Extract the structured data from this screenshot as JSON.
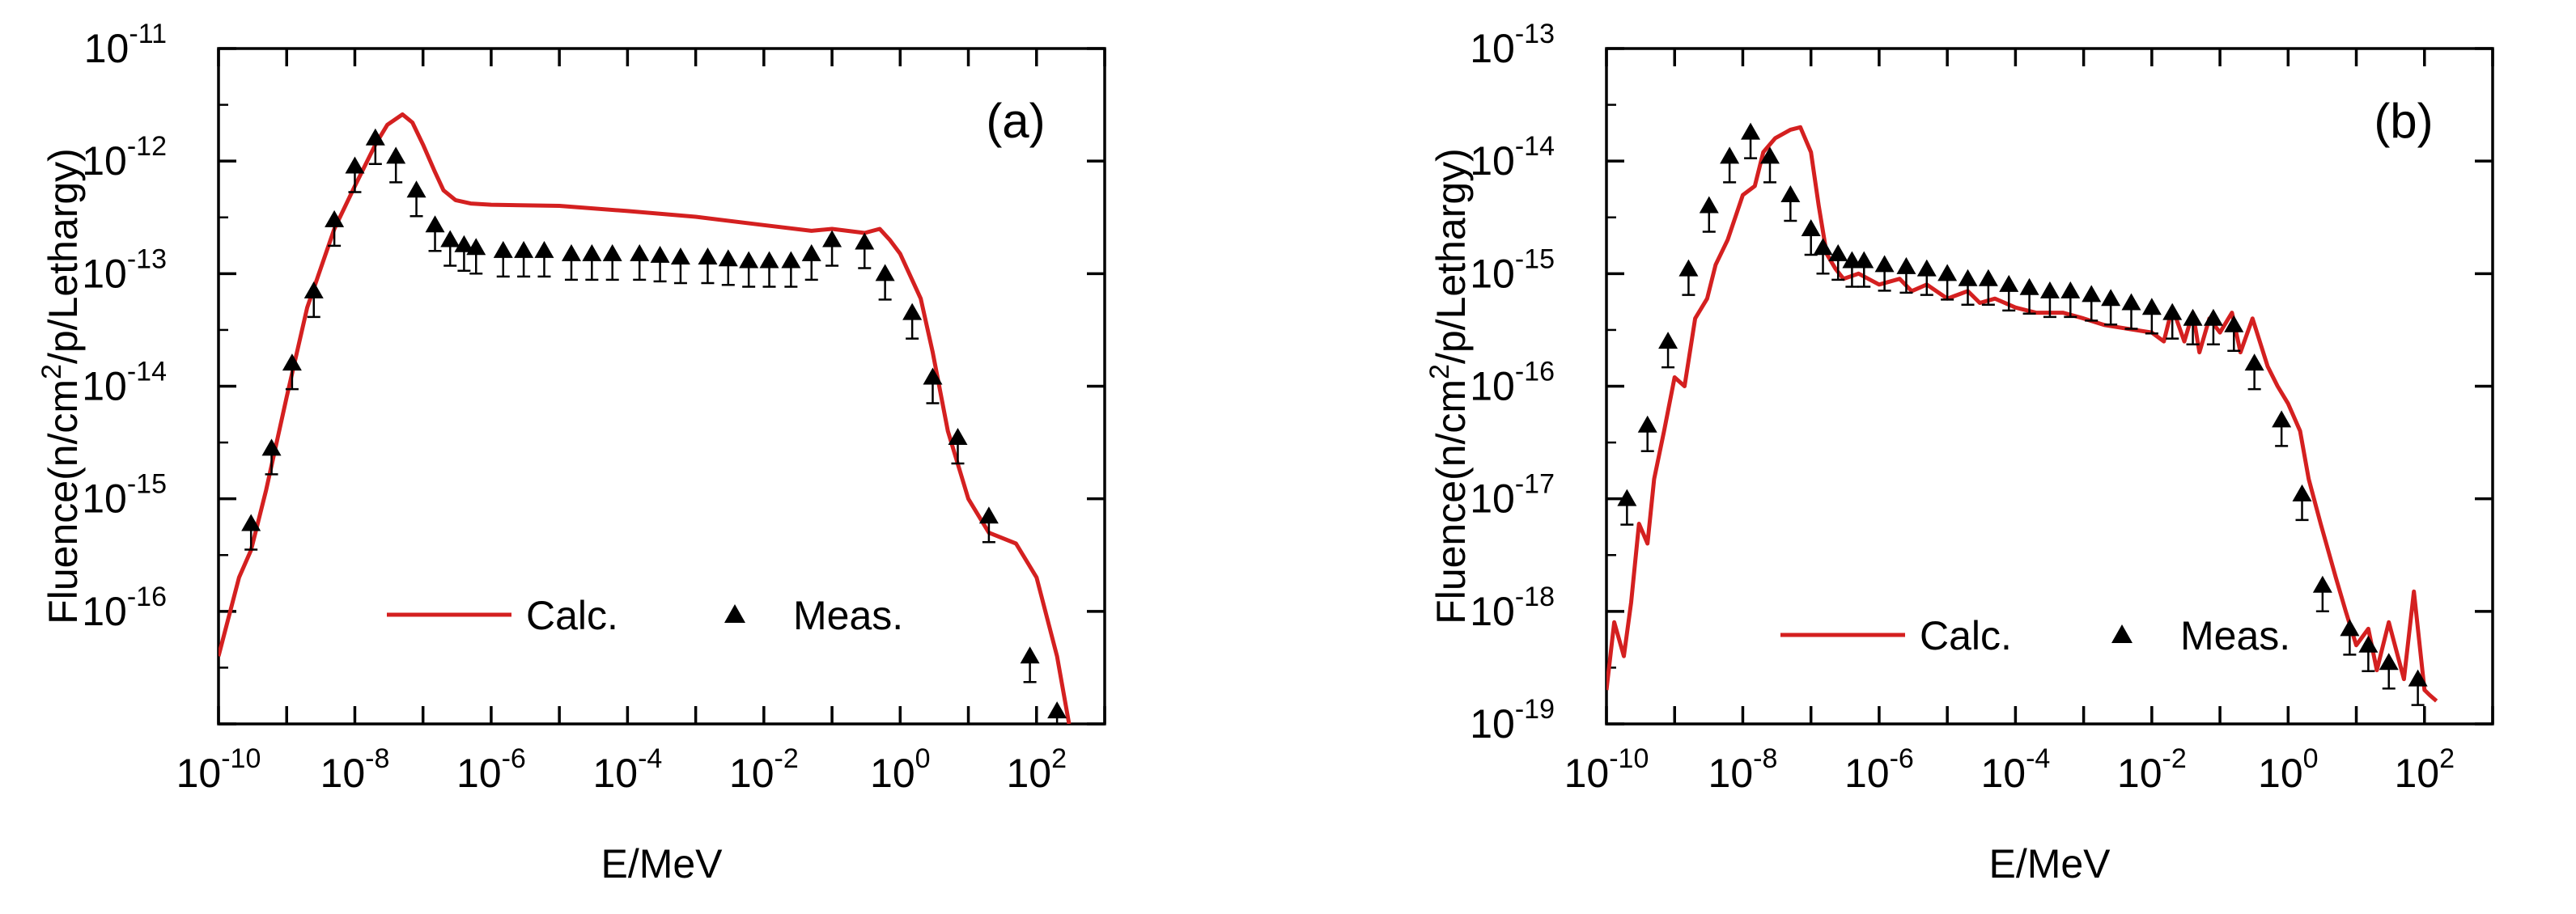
{
  "chart_data": [
    {
      "type": "line",
      "panel_label": "(a)",
      "xlabel": "E/MeV",
      "ylabel_parts": [
        "Fluence(n/cm",
        "2",
        "/p/Lethargy)"
      ],
      "x_scale": "log",
      "y_scale": "log",
      "xlim": [
        1e-10,
        1000
      ],
      "ylim": [
        1e-17,
        1e-11
      ],
      "x_ticks": [
        {
          "value": 1e-10,
          "base": "10",
          "exp": "-10"
        },
        {
          "value": 1e-08,
          "base": "10",
          "exp": "-8"
        },
        {
          "value": 1e-06,
          "base": "10",
          "exp": "-6"
        },
        {
          "value": 0.0001,
          "base": "10",
          "exp": "-4"
        },
        {
          "value": 0.01,
          "base": "10",
          "exp": "-2"
        },
        {
          "value": 1,
          "base": "10",
          "exp": "0"
        },
        {
          "value": 100,
          "base": "10",
          "exp": "2"
        }
      ],
      "y_ticks": [
        {
          "value": 1e-16,
          "base": "10",
          "exp": "-16"
        },
        {
          "value": 1e-15,
          "base": "10",
          "exp": "-15"
        },
        {
          "value": 1e-14,
          "base": "10",
          "exp": "-14"
        },
        {
          "value": 1e-13,
          "base": "10",
          "exp": "-13"
        },
        {
          "value": 1e-12,
          "base": "10",
          "exp": "-12"
        },
        {
          "value": 1e-11,
          "base": "10",
          "exp": "-11"
        }
      ],
      "legend": {
        "placement": "bottom-center",
        "line_label": "Calc.",
        "marker_label": "Meas."
      },
      "colors": {
        "calc": "#d42020",
        "meas": "#000000"
      },
      "series": [
        {
          "name": "Calc.",
          "style": "line",
          "x": [
            1e-10,
            2e-10,
            3e-10,
            5e-10,
            1e-09,
            2e-09,
            5e-09,
            1e-08,
            2e-08,
            3e-08,
            5e-08,
            7e-08,
            1e-07,
            1.5e-07,
            2e-07,
            3e-07,
            5e-07,
            1e-06,
            1e-05,
            0.0001,
            0.001,
            0.01,
            0.05,
            0.1,
            0.3,
            0.5,
            0.7,
            1,
            2,
            3,
            5,
            10.0,
            20.0,
            50.0,
            100.0,
            200.0,
            300.0
          ],
          "y": [
            4e-17,
            2e-16,
            3.5e-16,
            1.2e-15,
            8e-15,
            5e-14,
            2.5e-13,
            6e-13,
            1.4e-12,
            2.1e-12,
            2.6e-12,
            2.2e-12,
            1.4e-12,
            8e-13,
            5.5e-13,
            4.5e-13,
            4.2e-13,
            4.1e-13,
            4e-13,
            3.6e-13,
            3.2e-13,
            2.7e-13,
            2.4e-13,
            2.5e-13,
            2.3e-13,
            2.5e-13,
            2e-13,
            1.5e-13,
            6e-14,
            2e-14,
            4e-15,
            1e-15,
            5e-16,
            4e-16,
            2e-16,
            4e-17,
            1e-17
          ]
        },
        {
          "name": "Meas.",
          "style": "marker",
          "x": [
            3e-10,
            6e-10,
            1.2e-09,
            2.5e-09,
            5e-09,
            1e-08,
            2e-08,
            4e-08,
            8e-08,
            1.5e-07,
            2.5e-07,
            4e-07,
            6e-07,
            1.5e-06,
            3e-06,
            6e-06,
            1.5e-05,
            3e-05,
            6e-05,
            0.00015,
            0.0003,
            0.0006,
            0.0015,
            0.003,
            0.006,
            0.012,
            0.025,
            0.05,
            0.1,
            0.3,
            0.6,
            1.5,
            3,
            7,
            20.0,
            80.0,
            200.0
          ],
          "y": [
            6e-16,
            2.8e-15,
            1.6e-14,
            7e-14,
            3e-13,
            9e-13,
            1.6e-12,
            1.1e-12,
            5.5e-13,
            2.7e-13,
            2e-13,
            1.8e-13,
            1.7e-13,
            1.6e-13,
            1.6e-13,
            1.6e-13,
            1.5e-13,
            1.5e-13,
            1.5e-13,
            1.5e-13,
            1.45e-13,
            1.4e-13,
            1.4e-13,
            1.35e-13,
            1.3e-13,
            1.3e-13,
            1.3e-13,
            1.5e-13,
            2e-13,
            1.9e-13,
            1e-13,
            4.5e-14,
            1.2e-14,
            3.5e-15,
            7e-16,
            4e-17,
            1.3e-17
          ]
        }
      ]
    },
    {
      "type": "line",
      "panel_label": "(b)",
      "xlabel": "E/MeV",
      "ylabel_parts": [
        "Fluence(n/cm",
        "2",
        "/p/Lethargy)"
      ],
      "x_scale": "log",
      "y_scale": "log",
      "xlim": [
        1e-10,
        1000
      ],
      "ylim": [
        1e-19,
        1e-13
      ],
      "x_ticks": [
        {
          "value": 1e-10,
          "base": "10",
          "exp": "-10"
        },
        {
          "value": 1e-08,
          "base": "10",
          "exp": "-8"
        },
        {
          "value": 1e-06,
          "base": "10",
          "exp": "-6"
        },
        {
          "value": 0.0001,
          "base": "10",
          "exp": "-4"
        },
        {
          "value": 0.01,
          "base": "10",
          "exp": "-2"
        },
        {
          "value": 1,
          "base": "10",
          "exp": "0"
        },
        {
          "value": 100,
          "base": "10",
          "exp": "2"
        }
      ],
      "y_ticks": [
        {
          "value": 1e-19,
          "base": "10",
          "exp": "-19"
        },
        {
          "value": 1e-18,
          "base": "10",
          "exp": "-18"
        },
        {
          "value": 1e-17,
          "base": "10",
          "exp": "-17"
        },
        {
          "value": 1e-16,
          "base": "10",
          "exp": "-16"
        },
        {
          "value": 1e-15,
          "base": "10",
          "exp": "-15"
        },
        {
          "value": 1e-14,
          "base": "10",
          "exp": "-14"
        },
        {
          "value": 1e-13,
          "base": "10",
          "exp": "-13"
        }
      ],
      "legend": {
        "placement": "bottom-center",
        "line_label": "Calc.",
        "marker_label": "Meas."
      },
      "colors": {
        "calc": "#d42020",
        "meas": "#000000"
      },
      "series": [
        {
          "name": "Calc.",
          "style": "line",
          "x": [
            1e-10,
            1.3e-10,
            1.8e-10,
            2.3e-10,
            3e-10,
            4e-10,
            5e-10,
            7e-10,
            1e-09,
            1.4e-09,
            2e-09,
            3e-09,
            4e-09,
            6e-09,
            1e-08,
            1.5e-08,
            2e-08,
            3e-08,
            5e-08,
            7e-08,
            1e-07,
            1.3e-07,
            1.7e-07,
            2.3e-07,
            3e-07,
            5e-07,
            1e-06,
            2e-06,
            3e-06,
            5e-06,
            1e-05,
            2e-05,
            3e-05,
            5e-05,
            0.0001,
            0.0002,
            0.0005,
            0.001,
            0.002,
            0.005,
            0.01,
            0.015,
            0.02,
            0.03,
            0.04,
            0.05,
            0.07,
            0.1,
            0.15,
            0.2,
            0.3,
            0.5,
            0.7,
            1,
            1.5,
            2,
            3,
            5,
            7,
            10.0,
            15.0,
            20.0,
            30.0,
            50.0,
            70.0,
            100.0,
            120.0,
            150.0
          ],
          "y": [
            2e-19,
            8e-19,
            4e-19,
            1.2e-18,
            6e-18,
            4e-18,
            1.5e-17,
            4e-17,
            1.2e-16,
            1e-16,
            4e-16,
            6e-16,
            1.2e-15,
            2e-15,
            5e-15,
            6e-15,
            1.2e-14,
            1.6e-14,
            1.9e-14,
            2e-14,
            1.2e-14,
            4e-15,
            1.5e-15,
            1.1e-15,
            9e-16,
            1e-15,
            8e-16,
            9e-16,
            7e-16,
            8e-16,
            6e-16,
            7e-16,
            5.5e-16,
            6e-16,
            5e-16,
            4.5e-16,
            4.5e-16,
            4e-16,
            3.5e-16,
            3.2e-16,
            3e-16,
            2.5e-16,
            5e-16,
            2.5e-16,
            4.5e-16,
            2e-16,
            4e-16,
            3e-16,
            4.5e-16,
            2e-16,
            4e-16,
            1.5e-16,
            1e-16,
            7e-17,
            4e-17,
            1.5e-17,
            6e-18,
            2e-18,
            1e-18,
            5e-19,
            7e-19,
            3e-19,
            8e-19,
            2.5e-19,
            1.5e-18,
            2e-19,
            1.8e-19,
            1.6e-19
          ]
        },
        {
          "name": "Meas.",
          "style": "marker",
          "x": [
            2e-10,
            4e-10,
            8e-10,
            1.6e-09,
            3.2e-09,
            6.4e-09,
            1.3e-08,
            2.5e-08,
            5e-08,
            1e-07,
            1.5e-07,
            2.5e-07,
            4e-07,
            6e-07,
            1.2e-06,
            2.5e-06,
            5e-06,
            1e-05,
            2e-05,
            4e-05,
            8e-05,
            0.00016,
            0.00032,
            0.00064,
            0.0013,
            0.0025,
            0.005,
            0.01,
            0.02,
            0.04,
            0.08,
            0.16,
            0.32,
            0.8,
            1.6,
            3.2,
            8,
            15.0,
            30.0,
            80.0
          ],
          "y": [
            1e-17,
            4.5e-17,
            2.5e-16,
            1.1e-15,
            4e-15,
            1.1e-14,
            1.8e-14,
            1.1e-14,
            5e-15,
            2.5e-15,
            1.7e-15,
            1.5e-15,
            1.3e-15,
            1.3e-15,
            1.2e-15,
            1.15e-15,
            1.1e-15,
            1e-15,
            9e-16,
            9e-16,
            8e-16,
            7.5e-16,
            7e-16,
            7e-16,
            6.5e-16,
            6e-16,
            5.5e-16,
            5e-16,
            4.5e-16,
            4e-16,
            4e-16,
            3.5e-16,
            1.6e-16,
            5e-17,
            1.1e-17,
            1.7e-18,
            7e-19,
            5e-19,
            3.5e-19,
            2.5e-19
          ]
        }
      ]
    }
  ]
}
